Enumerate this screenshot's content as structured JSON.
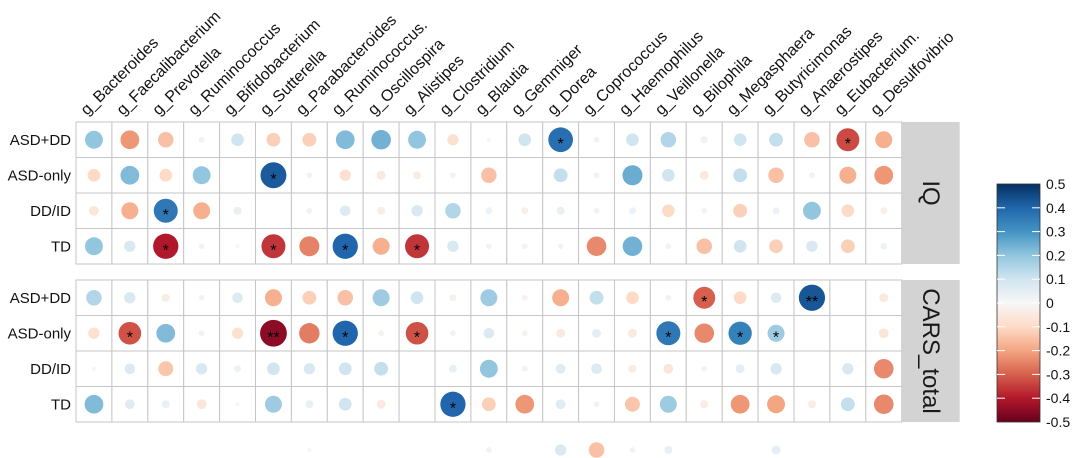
{
  "chart_data": {
    "type": "heatmap",
    "columns": [
      "g_Bacteroides",
      "g_Faecalibacterium",
      "g_Prevotella",
      "g_Ruminococcus",
      "g_Bifidobacterium",
      "g_Sutterella",
      "g_Parabacteroides",
      "g_Ruminococcus.",
      "g_Oscillospira",
      "g_Alistipes",
      "g_Clostridium",
      "g_Blautia",
      "g_Gemmiger",
      "g_Dorea",
      "g_Coprococcus",
      "g_Haemophilus",
      "g_Veillonella",
      "g_Bilophila",
      "g_Megasphaera",
      "g_Butyricimonas",
      "g_Anaerostipes",
      "g_Eubacterium.",
      "g_Desulfovibrio"
    ],
    "rows": [
      "ASD+DD",
      "ASD-only",
      "DD/ID",
      "TD"
    ],
    "panels": [
      {
        "label": "IQ",
        "values": [
          [
            0.2,
            -0.22,
            -0.15,
            0.02,
            0.1,
            -0.12,
            -0.12,
            0.22,
            0.24,
            0.2,
            -0.08,
            0.01,
            0.1,
            0.38,
            0.02,
            0.1,
            0.15,
            0.03,
            0.1,
            0.12,
            -0.15,
            -0.33,
            -0.18
          ],
          [
            -0.1,
            0.22,
            -0.1,
            0.2,
            0,
            0.42,
            0.02,
            -0.08,
            -0.05,
            -0.04,
            0.02,
            -0.15,
            0,
            0.12,
            0.02,
            0.25,
            0.1,
            -0.05,
            0.12,
            -0.15,
            0.02,
            -0.18,
            -0.22
          ],
          [
            -0.06,
            -0.18,
            0.36,
            -0.18,
            0.04,
            0,
            0.02,
            0.07,
            -0.04,
            0.08,
            0.15,
            0.03,
            -0.03,
            0.04,
            0.02,
            0.03,
            -0.1,
            0.02,
            -0.12,
            0.03,
            0.2,
            -0.1,
            -0.03
          ],
          [
            0.2,
            0.08,
            -0.4,
            0.02,
            0.01,
            -0.36,
            -0.25,
            0.4,
            -0.18,
            -0.36,
            0.08,
            0.02,
            0.02,
            0.02,
            -0.24,
            0.24,
            0.02,
            -0.15,
            0.1,
            -0.12,
            0.08,
            -0.12,
            0.03
          ]
        ],
        "significance": [
          {
            "row": 0,
            "col": 13,
            "mark": "*"
          },
          {
            "row": 0,
            "col": 21,
            "mark": "*"
          },
          {
            "row": 1,
            "col": 5,
            "mark": "*"
          },
          {
            "row": 2,
            "col": 2,
            "mark": "*"
          },
          {
            "row": 3,
            "col": 2,
            "mark": "*"
          },
          {
            "row": 3,
            "col": 5,
            "mark": "*"
          },
          {
            "row": 3,
            "col": 7,
            "mark": "*"
          },
          {
            "row": 3,
            "col": 9,
            "mark": "*"
          }
        ]
      },
      {
        "label": "CARS_total",
        "values": [
          [
            0.15,
            0.08,
            -0.04,
            0.02,
            0.07,
            -0.18,
            -0.12,
            -0.15,
            0.18,
            0.1,
            -0.03,
            0.18,
            -0.02,
            -0.18,
            0.12,
            -0.1,
            -0.02,
            -0.3,
            -0.1,
            0.07,
            0.43,
            0,
            -0.05
          ],
          [
            -0.08,
            -0.32,
            0.22,
            0.02,
            -0.08,
            -0.45,
            -0.26,
            0.4,
            -0.02,
            -0.32,
            0.02,
            0.07,
            -0.02,
            -0.05,
            0.05,
            -0.05,
            0.36,
            -0.24,
            0.34,
            0.18,
            0,
            0,
            -0.06
          ],
          [
            0.01,
            0.07,
            -0.14,
            0.08,
            0.03,
            0.1,
            0.08,
            0.1,
            0.12,
            0,
            0.04,
            0.2,
            0.02,
            0.06,
            0.07,
            -0.04,
            -0.06,
            0.02,
            0.05,
            0.08,
            0,
            0.08,
            -0.24
          ],
          [
            0.22,
            0.06,
            0.04,
            -0.06,
            0.01,
            0.18,
            0.04,
            0.1,
            -0.05,
            0,
            0.4,
            -0.12,
            -0.22,
            0.06,
            0.02,
            -0.14,
            0.18,
            -0.04,
            -0.22,
            -0.2,
            -0.04,
            0.12,
            -0.24
          ]
        ],
        "significance": [
          {
            "row": 0,
            "col": 17,
            "mark": "*"
          },
          {
            "row": 0,
            "col": 20,
            "mark": "**"
          },
          {
            "row": 1,
            "col": 1,
            "mark": "*"
          },
          {
            "row": 1,
            "col": 5,
            "mark": "**"
          },
          {
            "row": 1,
            "col": 7,
            "mark": "*"
          },
          {
            "row": 1,
            "col": 9,
            "mark": "*"
          },
          {
            "row": 1,
            "col": 16,
            "mark": "*"
          },
          {
            "row": 1,
            "col": 18,
            "mark": "*"
          },
          {
            "row": 1,
            "col": 19,
            "mark": "*"
          },
          {
            "row": 3,
            "col": 10,
            "mark": "*"
          }
        ]
      }
    ],
    "cropped_row": [
      0,
      0,
      0,
      0,
      0,
      0,
      0.01,
      0,
      0,
      0,
      0,
      0.02,
      0,
      0.08,
      -0.15,
      0.02,
      0.04,
      0,
      0,
      0.05,
      0,
      0,
      0
    ],
    "colorbar": {
      "range": [
        -0.5,
        0.5
      ],
      "ticks": [
        "0.5",
        "0.4",
        "0.3",
        "0.2",
        "0.1",
        "0",
        "-0.1",
        "-0.2",
        "-0.3",
        "-0.4",
        "-0.5"
      ],
      "palette": [
        "#67001F",
        "#B2182B",
        "#D6604D",
        "#F4A582",
        "#FDDBC7",
        "#F7F7F7",
        "#D1E5F0",
        "#92C5DE",
        "#4393C3",
        "#2166AC",
        "#053061"
      ]
    }
  }
}
